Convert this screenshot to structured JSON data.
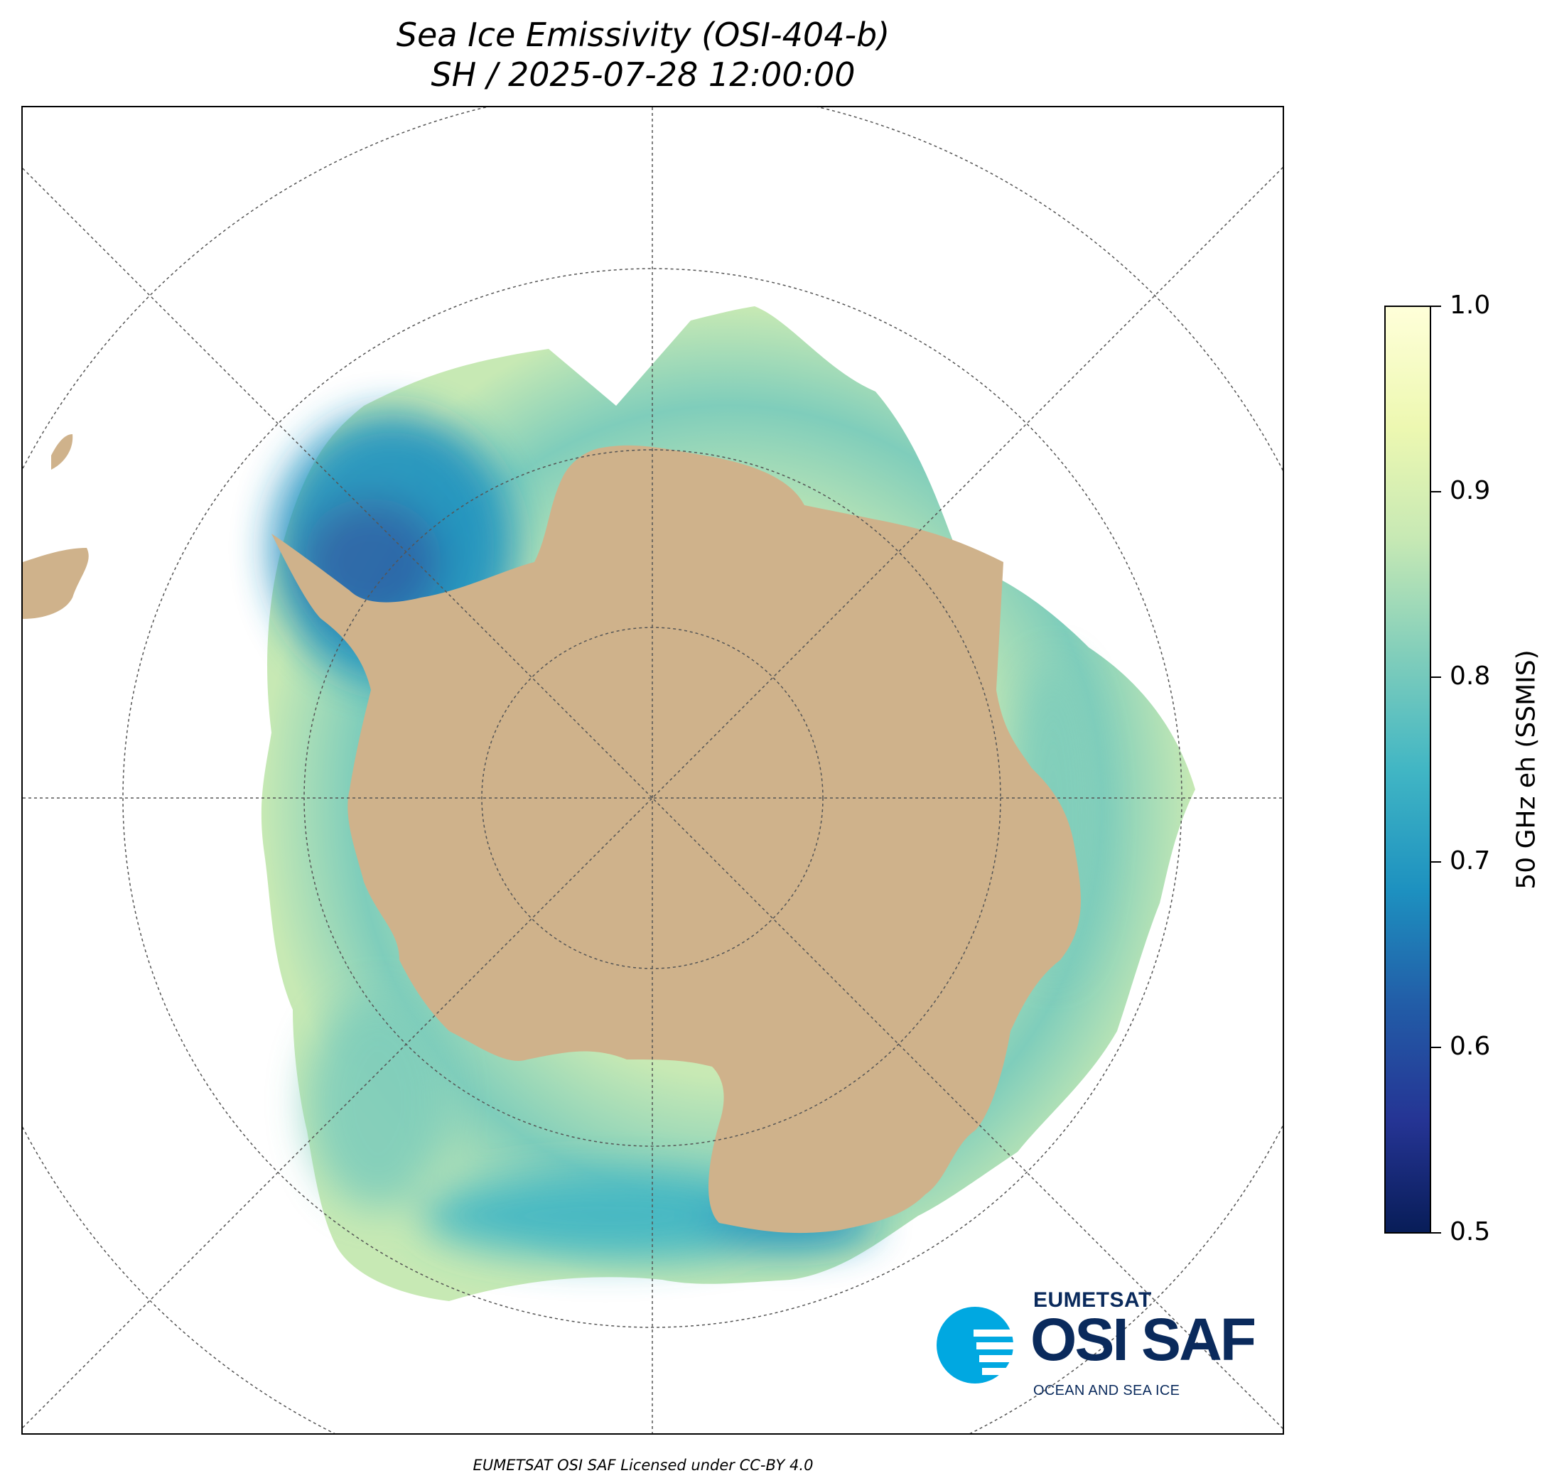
{
  "title": "Sea Ice Emissivity (OSI-404-b)",
  "subtitle": "SH / 2025-07-28 12:00:00",
  "colorbar": {
    "label": "50 GHz eh (SSMIS)",
    "range": [
      0.5,
      1.0
    ],
    "ticks": [
      "1.0",
      "0.9",
      "0.8",
      "0.7",
      "0.6",
      "0.5"
    ],
    "tick_values": [
      1.0,
      0.9,
      0.8,
      0.7,
      0.6,
      0.5
    ],
    "colormap": [
      "#081d58",
      "#253494",
      "#225ea8",
      "#1d91c0",
      "#41b6c4",
      "#7fcdbb",
      "#c7e9b4",
      "#edf8b1",
      "#ffffd9"
    ]
  },
  "colors": {
    "land": "#cfb28b",
    "grid": "#555555",
    "background": "#ffffff"
  },
  "logo": {
    "org": "EUMETSAT",
    "name": "OSI SAF",
    "tagline": "OCEAN AND SEA ICE",
    "accent": "#00a8e1",
    "navy": "#0a2a5c"
  },
  "footer": "EUMETSAT OSI SAF Licensed under CC-BY 4.0"
}
